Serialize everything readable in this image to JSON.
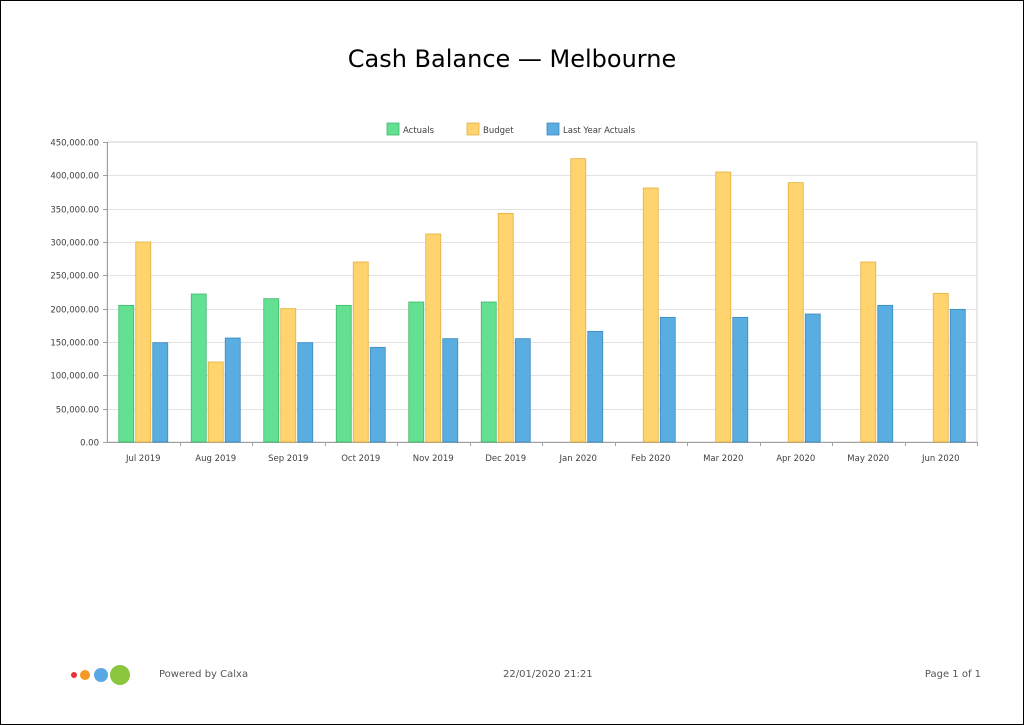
{
  "title": "Cash Balance — Melbourne",
  "footer": {
    "powered_by": "Powered by Calxa",
    "timestamp": "22/01/2020 21:21",
    "page": "Page 1 of 1"
  },
  "logo_colors": [
    "#e8323c",
    "#f59a23",
    "#5aa9e6",
    "#8cc63f"
  ],
  "chart_data": {
    "type": "bar",
    "title": "Cash Balance — Melbourne",
    "xlabel": "",
    "ylabel": "",
    "ylim": [
      0,
      450000
    ],
    "y_ticks": [
      0,
      50000,
      100000,
      150000,
      200000,
      250000,
      300000,
      350000,
      400000,
      450000
    ],
    "y_tick_labels": [
      "0.00",
      "50,000.00",
      "100,000.00",
      "150,000.00",
      "200,000.00",
      "250,000.00",
      "300,000.00",
      "350,000.00",
      "400,000.00",
      "450,000.00"
    ],
    "grid": true,
    "legend_position": "top-center",
    "categories": [
      "Jul 2019",
      "Aug 2019",
      "Sep 2019",
      "Oct 2019",
      "Nov 2019",
      "Dec 2019",
      "Jan 2020",
      "Feb 2020",
      "Mar 2020",
      "Apr 2020",
      "May 2020",
      "Jun 2020"
    ],
    "series": [
      {
        "name": "Actuals",
        "color": "#63e092",
        "stroke": "#3fb86c",
        "values": [
          205000,
          222000,
          215000,
          205000,
          210000,
          210000,
          null,
          null,
          null,
          null,
          null,
          null
        ]
      },
      {
        "name": "Budget",
        "color": "#ffd46f",
        "stroke": "#e0b040",
        "values": [
          300000,
          120000,
          200000,
          270000,
          312000,
          343000,
          425000,
          381000,
          405000,
          389000,
          270000,
          223000
        ]
      },
      {
        "name": "Last Year Actuals",
        "color": "#5aade0",
        "stroke": "#3a8ac0",
        "values": [
          149000,
          156000,
          149000,
          142000,
          155000,
          155000,
          166000,
          187000,
          187000,
          192000,
          205000,
          199000
        ]
      }
    ]
  }
}
